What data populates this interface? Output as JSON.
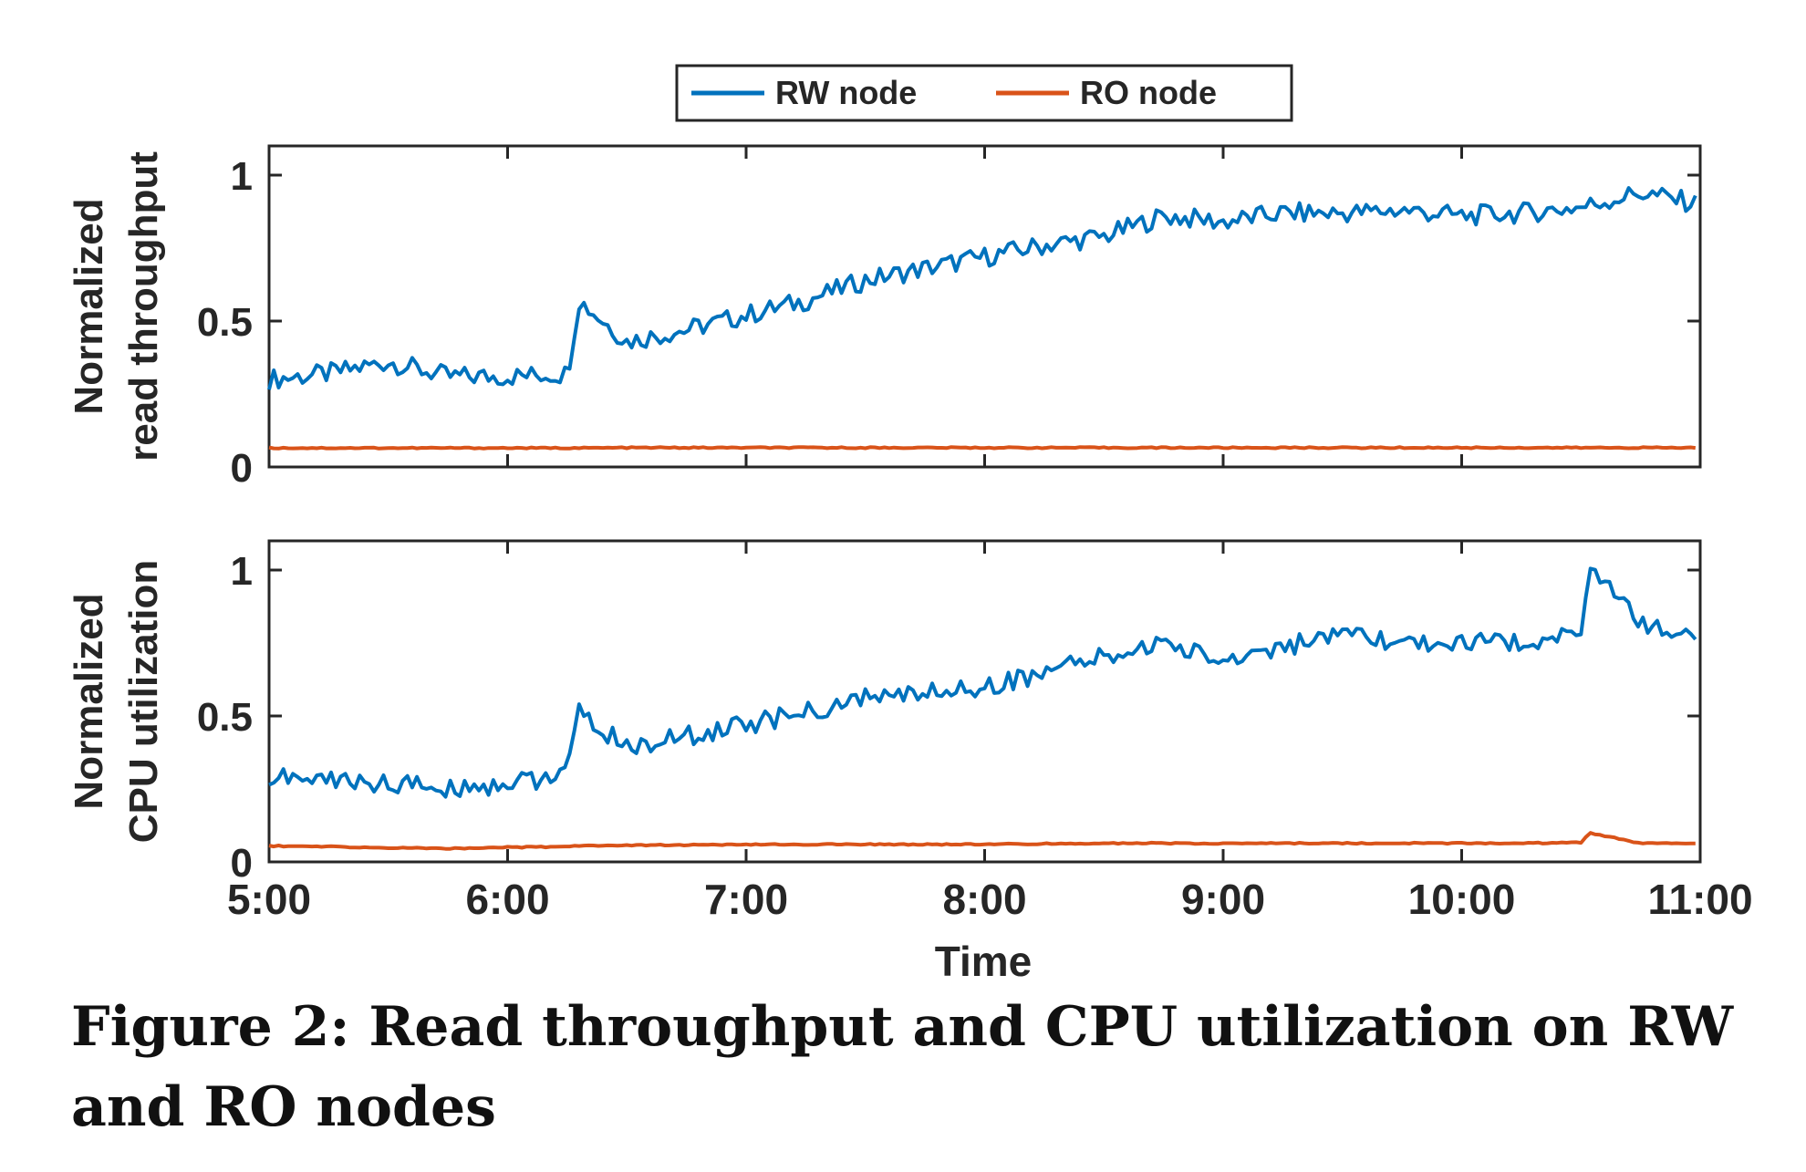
{
  "legend": {
    "placement": "top-center",
    "entries": [
      {
        "name": "RW node",
        "color": "#0072bd"
      },
      {
        "name": "RO node",
        "color": "#d95319"
      }
    ]
  },
  "x_axis": {
    "label": "Time",
    "range": [
      "5:00",
      "11:00"
    ],
    "ticks": [
      "5:00",
      "6:00",
      "7:00",
      "8:00",
      "9:00",
      "10:00",
      "11:00"
    ]
  },
  "caption": "Figure 2: Read throughput and CPU utilization on RW and RO nodes",
  "chart_data": [
    {
      "type": "line",
      "ylabel": [
        "Normalized",
        "read throughput"
      ],
      "ylim": [
        0,
        1.1
      ],
      "yticks": [
        "0",
        "0.5",
        "1"
      ],
      "grid": false,
      "x": [
        "5:00",
        "5:15",
        "5:30",
        "5:45",
        "6:00",
        "6:15",
        "6:18",
        "6:30",
        "6:45",
        "7:00",
        "7:15",
        "7:30",
        "7:45",
        "8:00",
        "8:15",
        "8:30",
        "8:45",
        "9:00",
        "9:15",
        "9:30",
        "9:45",
        "10:00",
        "10:15",
        "10:30",
        "10:45",
        "11:00"
      ],
      "series": [
        {
          "name": "RW node",
          "color": "#0072bd",
          "values": [
            0.3,
            0.32,
            0.36,
            0.31,
            0.31,
            0.32,
            0.57,
            0.43,
            0.47,
            0.52,
            0.57,
            0.64,
            0.68,
            0.72,
            0.76,
            0.79,
            0.86,
            0.84,
            0.87,
            0.87,
            0.88,
            0.86,
            0.87,
            0.89,
            0.94,
            0.9
          ]
        },
        {
          "name": "RO node",
          "color": "#d95319",
          "values": [
            0.065,
            0.065,
            0.065,
            0.065,
            0.065,
            0.065,
            0.065,
            0.066,
            0.066,
            0.066,
            0.066,
            0.066,
            0.066,
            0.066,
            0.066,
            0.066,
            0.066,
            0.066,
            0.066,
            0.066,
            0.066,
            0.066,
            0.066,
            0.066,
            0.066,
            0.066
          ]
        }
      ]
    },
    {
      "type": "line",
      "ylabel": [
        "Normalized",
        "CPU utilization"
      ],
      "ylim": [
        0,
        1.1
      ],
      "yticks": [
        "0",
        "0.5",
        "1"
      ],
      "grid": false,
      "x": [
        "5:00",
        "5:15",
        "5:30",
        "5:45",
        "6:00",
        "6:15",
        "6:18",
        "6:30",
        "6:45",
        "7:00",
        "7:15",
        "7:30",
        "7:45",
        "8:00",
        "8:15",
        "8:30",
        "8:45",
        "9:00",
        "9:15",
        "9:30",
        "9:45",
        "10:00",
        "10:15",
        "10:30",
        "10:32",
        "10:45",
        "11:00"
      ],
      "series": [
        {
          "name": "RW node",
          "color": "#0072bd",
          "values": [
            0.29,
            0.28,
            0.27,
            0.25,
            0.27,
            0.3,
            0.51,
            0.39,
            0.43,
            0.47,
            0.51,
            0.56,
            0.58,
            0.6,
            0.65,
            0.7,
            0.75,
            0.69,
            0.74,
            0.77,
            0.75,
            0.75,
            0.75,
            0.8,
            1.0,
            0.82,
            0.76
          ]
        },
        {
          "name": "RO node",
          "color": "#d95319",
          "values": [
            0.055,
            0.052,
            0.048,
            0.046,
            0.05,
            0.052,
            0.056,
            0.057,
            0.058,
            0.059,
            0.06,
            0.06,
            0.06,
            0.06,
            0.062,
            0.064,
            0.064,
            0.063,
            0.064,
            0.064,
            0.064,
            0.064,
            0.064,
            0.066,
            0.1,
            0.064,
            0.062
          ]
        }
      ]
    }
  ]
}
